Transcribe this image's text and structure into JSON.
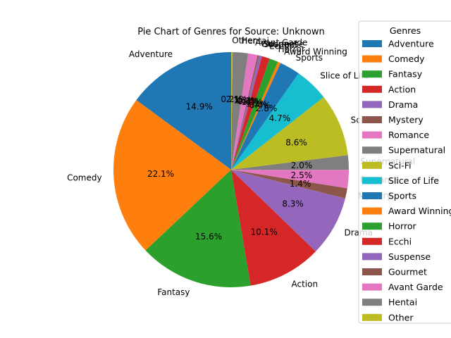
{
  "chart_data": {
    "type": "pie",
    "title": "Pie Chart of Genres for Source: Unknown",
    "legend_title": "Genres",
    "legend_position": "right",
    "start_angle_deg": 90,
    "counterclockwise": true,
    "slices": [
      {
        "label": "Adventure",
        "value": 14.9,
        "color": "#1f77b4"
      },
      {
        "label": "Comedy",
        "value": 22.1,
        "color": "#ff7f0e"
      },
      {
        "label": "Fantasy",
        "value": 15.6,
        "color": "#2ca02c"
      },
      {
        "label": "Action",
        "value": 10.1,
        "color": "#d62728"
      },
      {
        "label": "Drama",
        "value": 8.3,
        "color": "#9467bd"
      },
      {
        "label": "Mystery",
        "value": 1.4,
        "color": "#8c564b"
      },
      {
        "label": "Romance",
        "value": 2.5,
        "color": "#e377c2"
      },
      {
        "label": "Supernatural",
        "value": 2.0,
        "color": "#7f7f7f"
      },
      {
        "label": "Sci-Fi",
        "value": 8.6,
        "color": "#bcbd22"
      },
      {
        "label": "Slice of Life",
        "value": 4.7,
        "color": "#17becf"
      },
      {
        "label": "Sports",
        "value": 2.8,
        "color": "#1f77b4"
      },
      {
        "label": "Award Winning",
        "value": 0.4,
        "color": "#ff7f0e"
      },
      {
        "label": "Horror",
        "value": 1.2,
        "color": "#2ca02c"
      },
      {
        "label": "Ecchi",
        "value": 1.1,
        "color": "#d62728"
      },
      {
        "label": "Suspense",
        "value": 0.4,
        "color": "#9467bd"
      },
      {
        "label": "Gourmet",
        "value": 0.2,
        "color": "#8c564b"
      },
      {
        "label": "Avant Garde",
        "value": 1.3,
        "color": "#e377c2"
      },
      {
        "label": "Hentai",
        "value": 2.1,
        "color": "#7f7f7f"
      },
      {
        "label": "Other",
        "value": 0.2,
        "color": "#bcbd22"
      }
    ]
  }
}
